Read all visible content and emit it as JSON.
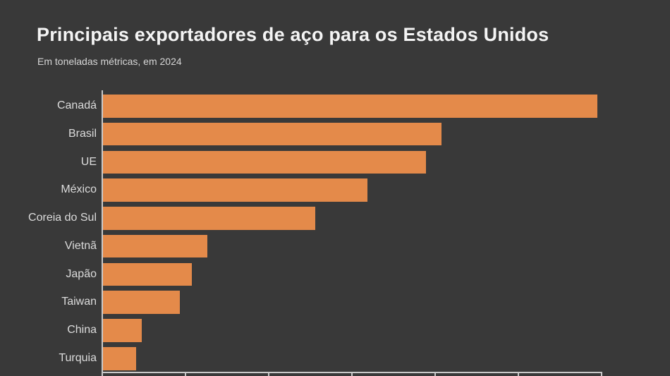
{
  "header": {
    "title": "Principais exportadores de aço para os Estados Unidos",
    "subtitle": "Em toneladas métricas, em 2024"
  },
  "chart_data": {
    "type": "bar",
    "orientation": "horizontal",
    "title": "Principais exportadores de aço para os Estados Unidos",
    "subtitle": "Em toneladas métricas, em 2024",
    "categories": [
      "Canadá",
      "Brasil",
      "UE",
      "México",
      "Coreia do Sul",
      "Vietnã",
      "Japão",
      "Taiwan",
      "China",
      "Turquia"
    ],
    "values": [
      5.94,
      4.07,
      3.88,
      3.18,
      2.55,
      1.25,
      1.07,
      0.92,
      0.47,
      0.4
    ],
    "values_unit": "millions of metric tons (estimated from unlabeled axis ticks)",
    "xlabel": "",
    "ylabel": "",
    "xlim": [
      0,
      6
    ],
    "x_tick_step": 1,
    "x_tick_labels_visible": false,
    "grid": false,
    "legend": false,
    "colors": {
      "bar": "#E48A4A",
      "background": "#393939",
      "axis": "#C9C9C9",
      "category_label": "#DCDCDC",
      "title": "#F4F4F4",
      "subtitle": "#D6D6D6"
    }
  }
}
